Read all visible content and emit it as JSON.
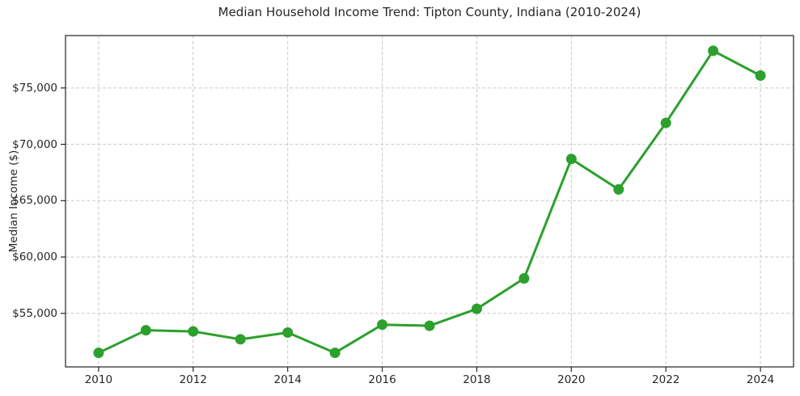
{
  "chart_data": {
    "type": "line",
    "title": "Median Household Income Trend: Tipton County, Indiana (2010-2024)",
    "xlabel": "",
    "ylabel": "Median Income ($)",
    "x": [
      2010,
      2011,
      2012,
      2013,
      2014,
      2015,
      2016,
      2017,
      2018,
      2019,
      2020,
      2021,
      2022,
      2023,
      2024
    ],
    "values": [
      51500,
      53500,
      53400,
      52700,
      53300,
      51500,
      54000,
      53900,
      55400,
      58100,
      68700,
      66000,
      71900,
      78300,
      76100
    ],
    "x_ticks": [
      2010,
      2012,
      2014,
      2016,
      2018,
      2020,
      2022,
      2024
    ],
    "x_tick_labels": [
      "2010",
      "2012",
      "2014",
      "2016",
      "2018",
      "2020",
      "2022",
      "2024"
    ],
    "y_ticks": [
      55000,
      60000,
      65000,
      70000,
      75000
    ],
    "y_tick_labels": [
      "$55,000",
      "$60,000",
      "$65,000",
      "$70,000",
      "$75,000"
    ],
    "xlim": [
      2009.3,
      2024.7
    ],
    "ylim": [
      50250,
      79650
    ],
    "grid": true,
    "grid_style": "dashed",
    "legend_position": "none",
    "line_color": "#2ca02c",
    "marker": "circle",
    "marker_color": "#2ca02c",
    "grid_color": "#c9c9c9",
    "axis_color": "#222222",
    "text_color": "#262626",
    "background": "#ffffff"
  }
}
